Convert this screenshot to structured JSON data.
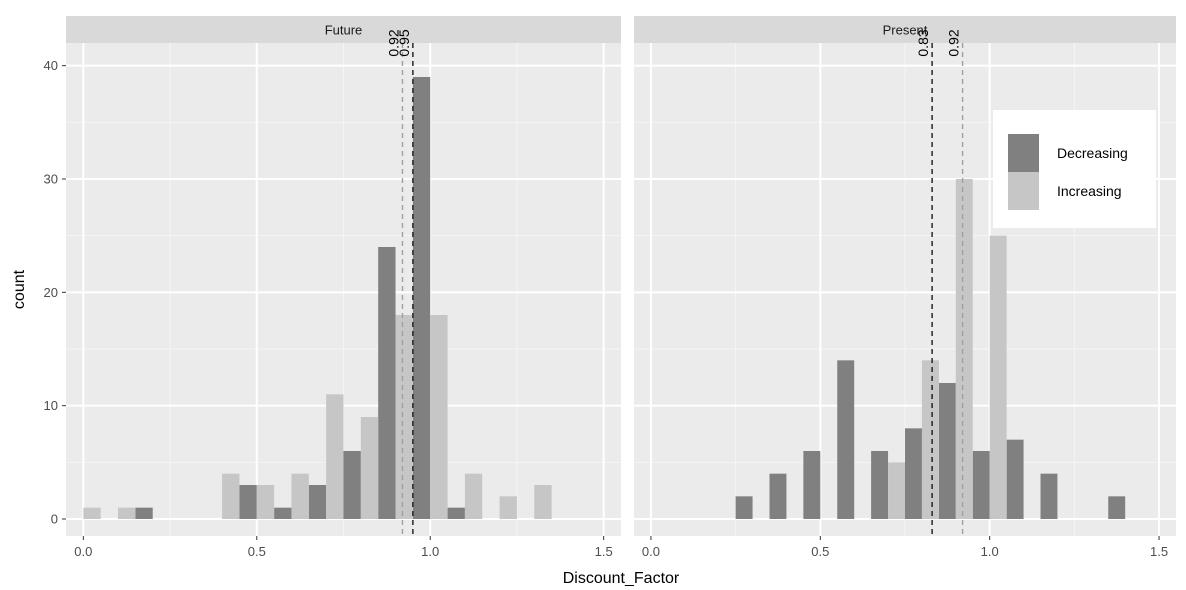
{
  "chart_data": {
    "type": "bar",
    "subtype": "faceted-histogram",
    "xlabel": "Discount_Factor",
    "ylabel": "count",
    "xlim": [
      -0.05,
      1.55
    ],
    "ylim": [
      -1.5,
      42
    ],
    "x_ticks": [
      {
        "value": 0.0,
        "label": "0.0"
      },
      {
        "value": 0.5,
        "label": "0.5"
      },
      {
        "value": 1.0,
        "label": "1.0"
      },
      {
        "value": 1.5,
        "label": "1.5"
      }
    ],
    "y_ticks": [
      {
        "value": 0,
        "label": "0"
      },
      {
        "value": 10,
        "label": "10"
      },
      {
        "value": 20,
        "label": "20"
      },
      {
        "value": 30,
        "label": "30"
      },
      {
        "value": 40,
        "label": "40"
      }
    ],
    "bin_width": 0.05,
    "grid": true,
    "legend": {
      "placement": "top-right",
      "items": [
        {
          "key": "Decreasing",
          "label": "Decreasing",
          "color": "#808080"
        },
        {
          "key": "Increasing",
          "label": "Increasing",
          "color": "#c6c6c6"
        }
      ]
    },
    "facets": [
      {
        "name": "Future",
        "series": [
          {
            "name": "Decreasing",
            "x": [
              0.175,
              0.475,
              0.575,
              0.675,
              0.775,
              0.875,
              0.975,
              1.075
            ],
            "values": [
              1,
              3,
              1,
              3,
              6,
              24,
              39,
              1
            ]
          },
          {
            "name": "Increasing",
            "x": [
              0.025,
              0.125,
              0.425,
              0.525,
              0.625,
              0.725,
              0.825,
              0.925,
              1.025,
              1.125,
              1.225,
              1.325
            ],
            "values": [
              1,
              1,
              4,
              3,
              4,
              11,
              9,
              18,
              18,
              4,
              2,
              3
            ]
          }
        ],
        "vlines": [
          {
            "x": 0.92,
            "label": "0.92",
            "series": "Increasing"
          },
          {
            "x": 0.95,
            "label": "0.95",
            "series": "Decreasing"
          }
        ]
      },
      {
        "name": "Present",
        "series": [
          {
            "name": "Decreasing",
            "x": [
              0.275,
              0.375,
              0.475,
              0.575,
              0.675,
              0.775,
              0.875,
              0.975,
              1.075,
              1.175,
              1.375
            ],
            "values": [
              2,
              4,
              6,
              14,
              6,
              8,
              12,
              6,
              7,
              4,
              2
            ]
          },
          {
            "name": "Increasing",
            "x": [
              0.725,
              0.825,
              0.925,
              1.025
            ],
            "values": [
              5,
              14,
              30,
              25
            ]
          }
        ],
        "vlines": [
          {
            "x": 0.83,
            "label": "0.83",
            "series": "Decreasing"
          },
          {
            "x": 0.92,
            "label": "0.92",
            "series": "Increasing"
          }
        ]
      }
    ]
  }
}
